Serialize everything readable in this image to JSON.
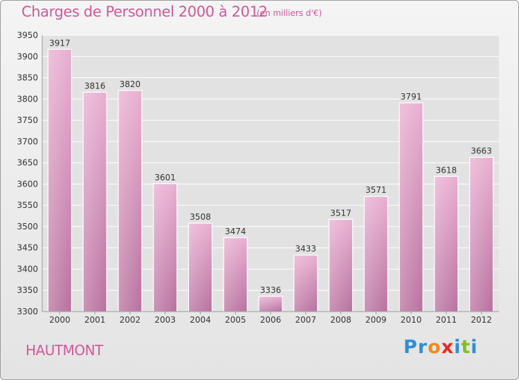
{
  "chart_data": {
    "type": "bar",
    "title": "Charges de Personnel 2000 à 2012",
    "subtitle": "(en milliers d'€)",
    "categories": [
      "2000",
      "2001",
      "2002",
      "2003",
      "2004",
      "2005",
      "2006",
      "2007",
      "2008",
      "2009",
      "2010",
      "2011",
      "2012"
    ],
    "values": [
      3917,
      3816,
      3820,
      3601,
      3508,
      3474,
      3336,
      3433,
      3517,
      3571,
      3791,
      3618,
      3663
    ],
    "ylim": [
      3300,
      3950
    ],
    "yticks": [
      3300,
      3350,
      3400,
      3450,
      3500,
      3550,
      3600,
      3650,
      3700,
      3750,
      3800,
      3850,
      3900,
      3950
    ],
    "grid": true,
    "bar_color": "#d98bbb"
  },
  "footer": {
    "town": "HAUTMONT",
    "logo_letters": [
      {
        "char": "P",
        "color": "#2e8fd6"
      },
      {
        "char": "r",
        "color": "#2e8fd6"
      },
      {
        "char": "o",
        "color": "#f08a1c"
      },
      {
        "char": "x",
        "color": "#e8281f"
      },
      {
        "char": "i",
        "color": "#2e8fd6"
      },
      {
        "char": "t",
        "color": "#7fbf2b"
      },
      {
        "char": "i",
        "color": "#2e8fd6"
      }
    ]
  }
}
